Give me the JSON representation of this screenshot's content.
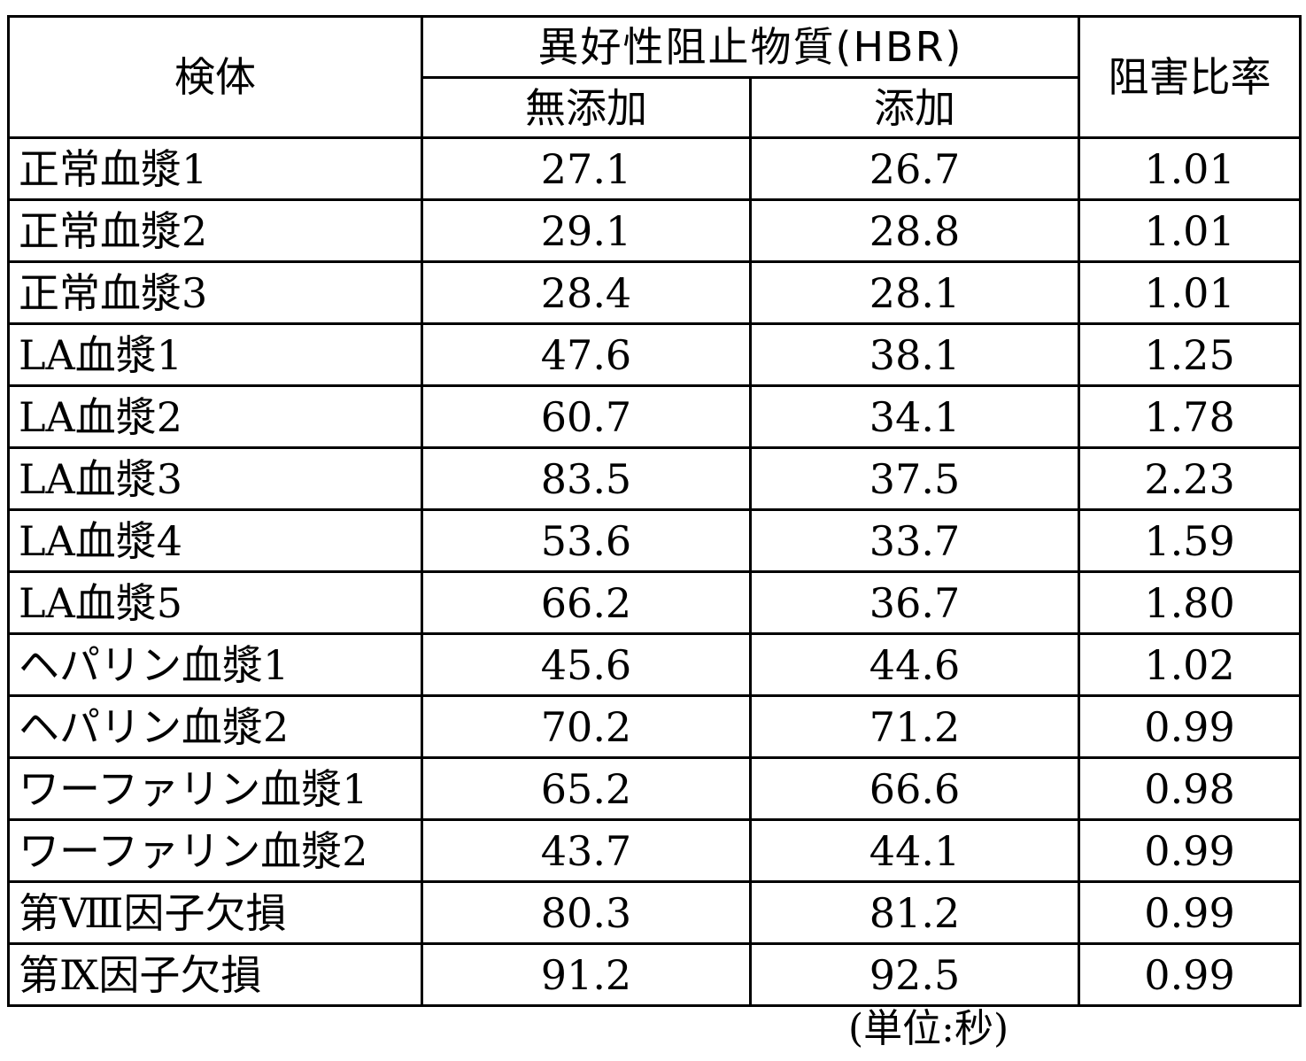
{
  "table": {
    "header": {
      "specimen": "検体",
      "group": "異好性阻止物質(HBR)",
      "without": "無添加",
      "with": "添加",
      "ratio": "阻害比率"
    },
    "rows": [
      {
        "name": "正常血漿1",
        "without": "27.1",
        "with": "26.7",
        "ratio": "1.01"
      },
      {
        "name": "正常血漿2",
        "without": "29.1",
        "with": "28.8",
        "ratio": "1.01"
      },
      {
        "name": "正常血漿3",
        "without": "28.4",
        "with": "28.1",
        "ratio": "1.01"
      },
      {
        "name": "LA血漿1",
        "without": "47.6",
        "with": "38.1",
        "ratio": "1.25"
      },
      {
        "name": "LA血漿2",
        "without": "60.7",
        "with": "34.1",
        "ratio": "1.78"
      },
      {
        "name": "LA血漿3",
        "without": "83.5",
        "with": "37.5",
        "ratio": "2.23"
      },
      {
        "name": "LA血漿4",
        "without": "53.6",
        "with": "33.7",
        "ratio": "1.59"
      },
      {
        "name": "LA血漿5",
        "without": "66.2",
        "with": "36.7",
        "ratio": "1.80"
      },
      {
        "name": "ヘパリン血漿1",
        "without": "45.6",
        "with": "44.6",
        "ratio": "1.02"
      },
      {
        "name": "ヘパリン血漿2",
        "without": "70.2",
        "with": "71.2",
        "ratio": "0.99"
      },
      {
        "name": "ワーファリン血漿1",
        "without": "65.2",
        "with": "66.6",
        "ratio": "0.98"
      },
      {
        "name": "ワーファリン血漿2",
        "without": "43.7",
        "with": "44.1",
        "ratio": "0.99"
      },
      {
        "name": "第Ⅷ因子欠損",
        "without": "80.3",
        "with": "81.2",
        "ratio": "0.99"
      },
      {
        "name": "第Ⅸ因子欠損",
        "without": "91.2",
        "with": "92.5",
        "ratio": "0.99"
      }
    ]
  },
  "unit_note": "(単位:秒)"
}
